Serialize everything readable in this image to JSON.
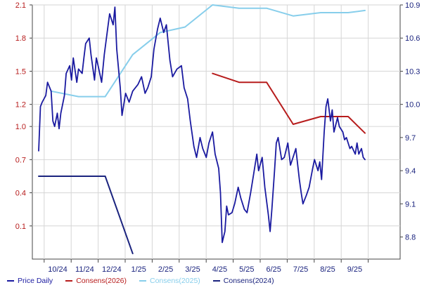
{
  "chart_data": {
    "type": "line",
    "x_tick_labels": [
      "10/24",
      "11/24",
      "12/24",
      "1/25",
      "2/25",
      "3/25",
      "4/25",
      "5/25",
      "6/25",
      "7/25",
      "8/25",
      "9/25"
    ],
    "left_axis": {
      "ticks": [
        "0.1",
        "0.4",
        "0.7",
        "1.0",
        "1.2",
        "1.5",
        "1.8",
        "2.1"
      ],
      "ylim": [
        -0.2,
        2.1
      ],
      "color": "#b71c1c"
    },
    "right_axis": {
      "ticks": [
        "8.8",
        "9.1",
        "9.4",
        "9.7",
        "10.0",
        "10.3",
        "10.6",
        "10.9"
      ],
      "ylim": [
        8.6,
        10.9
      ],
      "color": "#1a237e"
    },
    "series": [
      {
        "name": "Price Daily",
        "axis": "left",
        "color": "#1a1aa0",
        "points": [
          [
            "2024-09-16",
            0.78
          ],
          [
            "2024-09-18",
            1.18
          ],
          [
            "2024-09-20",
            1.22
          ],
          [
            "2024-09-24",
            1.28
          ],
          [
            "2024-09-26",
            1.4
          ],
          [
            "2024-09-30",
            1.32
          ],
          [
            "2024-10-02",
            1.05
          ],
          [
            "2024-10-04",
            1.0
          ],
          [
            "2024-10-07",
            1.12
          ],
          [
            "2024-10-09",
            0.98
          ],
          [
            "2024-10-11",
            1.12
          ],
          [
            "2024-10-15",
            1.28
          ],
          [
            "2024-10-17",
            1.48
          ],
          [
            "2024-10-21",
            1.55
          ],
          [
            "2024-10-23",
            1.42
          ],
          [
            "2024-10-25",
            1.62
          ],
          [
            "2024-10-29",
            1.4
          ],
          [
            "2024-10-31",
            1.52
          ],
          [
            "2024-11-04",
            1.48
          ],
          [
            "2024-11-06",
            1.62
          ],
          [
            "2024-11-08",
            1.75
          ],
          [
            "2024-11-12",
            1.8
          ],
          [
            "2024-11-14",
            1.65
          ],
          [
            "2024-11-18",
            1.42
          ],
          [
            "2024-11-20",
            1.62
          ],
          [
            "2024-11-22",
            1.55
          ],
          [
            "2024-11-26",
            1.4
          ],
          [
            "2024-11-29",
            1.65
          ],
          [
            "2024-12-03",
            1.9
          ],
          [
            "2024-12-05",
            2.02
          ],
          [
            "2024-12-09",
            1.92
          ],
          [
            "2024-12-11",
            2.08
          ],
          [
            "2024-12-13",
            1.7
          ],
          [
            "2024-12-17",
            1.35
          ],
          [
            "2024-12-19",
            1.1
          ],
          [
            "2024-12-23",
            1.3
          ],
          [
            "2024-12-27",
            1.22
          ],
          [
            "2024-12-31",
            1.32
          ],
          [
            "2025-01-06",
            1.38
          ],
          [
            "2025-01-10",
            1.45
          ],
          [
            "2025-01-14",
            1.3
          ],
          [
            "2025-01-17",
            1.35
          ],
          [
            "2025-01-21",
            1.45
          ],
          [
            "2025-01-24",
            1.7
          ],
          [
            "2025-01-28",
            1.88
          ],
          [
            "2025-01-31",
            1.98
          ],
          [
            "2025-02-04",
            1.85
          ],
          [
            "2025-02-07",
            1.92
          ],
          [
            "2025-02-11",
            1.6
          ],
          [
            "2025-02-14",
            1.45
          ],
          [
            "2025-02-19",
            1.52
          ],
          [
            "2025-02-24",
            1.55
          ],
          [
            "2025-02-27",
            1.35
          ],
          [
            "2025-03-03",
            1.25
          ],
          [
            "2025-03-06",
            1.05
          ],
          [
            "2025-03-10",
            0.82
          ],
          [
            "2025-03-13",
            0.72
          ],
          [
            "2025-03-17",
            0.9
          ],
          [
            "2025-03-20",
            0.8
          ],
          [
            "2025-03-24",
            0.72
          ],
          [
            "2025-03-27",
            0.85
          ],
          [
            "2025-03-31",
            0.95
          ],
          [
            "2025-04-03",
            0.75
          ],
          [
            "2025-04-07",
            0.62
          ],
          [
            "2025-04-09",
            0.4
          ],
          [
            "2025-04-11",
            -0.05
          ],
          [
            "2025-04-14",
            0.05
          ],
          [
            "2025-04-16",
            0.28
          ],
          [
            "2025-04-18",
            0.2
          ],
          [
            "2025-04-22",
            0.22
          ],
          [
            "2025-04-25",
            0.3
          ],
          [
            "2025-04-29",
            0.45
          ],
          [
            "2025-05-02",
            0.35
          ],
          [
            "2025-05-06",
            0.25
          ],
          [
            "2025-05-09",
            0.22
          ],
          [
            "2025-05-13",
            0.4
          ],
          [
            "2025-05-16",
            0.55
          ],
          [
            "2025-05-20",
            0.75
          ],
          [
            "2025-05-22",
            0.6
          ],
          [
            "2025-05-26",
            0.72
          ],
          [
            "2025-05-29",
            0.45
          ],
          [
            "2025-06-02",
            0.2
          ],
          [
            "2025-06-04",
            0.05
          ],
          [
            "2025-06-06",
            0.25
          ],
          [
            "2025-06-09",
            0.6
          ],
          [
            "2025-06-11",
            0.85
          ],
          [
            "2025-06-13",
            0.9
          ],
          [
            "2025-06-17",
            0.7
          ],
          [
            "2025-06-20",
            0.72
          ],
          [
            "2025-06-24",
            0.85
          ],
          [
            "2025-06-27",
            0.65
          ],
          [
            "2025-07-01",
            0.75
          ],
          [
            "2025-07-03",
            0.8
          ],
          [
            "2025-07-07",
            0.52
          ],
          [
            "2025-07-09",
            0.4
          ],
          [
            "2025-07-11",
            0.3
          ],
          [
            "2025-07-15",
            0.38
          ],
          [
            "2025-07-18",
            0.45
          ],
          [
            "2025-07-22",
            0.62
          ],
          [
            "2025-07-24",
            0.7
          ],
          [
            "2025-07-28",
            0.6
          ],
          [
            "2025-07-30",
            0.68
          ],
          [
            "2025-08-01",
            0.52
          ],
          [
            "2025-08-04",
            0.95
          ],
          [
            "2025-08-06",
            1.18
          ],
          [
            "2025-08-08",
            1.25
          ],
          [
            "2025-08-11",
            1.05
          ],
          [
            "2025-08-13",
            1.15
          ],
          [
            "2025-08-15",
            0.95
          ],
          [
            "2025-08-19",
            1.08
          ],
          [
            "2025-08-21",
            1.0
          ],
          [
            "2025-08-25",
            0.95
          ],
          [
            "2025-08-27",
            0.88
          ],
          [
            "2025-08-29",
            0.9
          ],
          [
            "2025-09-02",
            0.8
          ],
          [
            "2025-09-04",
            0.82
          ],
          [
            "2025-09-08",
            0.75
          ],
          [
            "2025-09-10",
            0.85
          ],
          [
            "2025-09-12",
            0.75
          ],
          [
            "2025-09-15",
            0.8
          ],
          [
            "2025-09-17",
            0.72
          ],
          [
            "2025-09-19",
            0.7
          ]
        ]
      },
      {
        "name": "Consens(2026)",
        "axis": "right",
        "color": "#b71c1c",
        "points": [
          [
            "2025-03-31",
            10.28
          ],
          [
            "2025-04-30",
            10.2
          ],
          [
            "2025-05-31",
            10.2
          ],
          [
            "2025-06-30",
            9.82
          ],
          [
            "2025-07-31",
            9.89
          ],
          [
            "2025-08-31",
            9.89
          ],
          [
            "2025-09-19",
            9.74
          ]
        ]
      },
      {
        "name": "Consens(2025)",
        "axis": "right",
        "color": "#87ceeb",
        "points": [
          [
            "2024-09-30",
            10.12
          ],
          [
            "2024-10-31",
            10.07
          ],
          [
            "2024-11-30",
            10.07
          ],
          [
            "2024-12-31",
            10.45
          ],
          [
            "2025-01-31",
            10.65
          ],
          [
            "2025-02-28",
            10.7
          ],
          [
            "2025-03-31",
            10.9
          ],
          [
            "2025-04-30",
            10.87
          ],
          [
            "2025-05-31",
            10.87
          ],
          [
            "2025-06-30",
            10.8
          ],
          [
            "2025-07-31",
            10.83
          ],
          [
            "2025-08-31",
            10.83
          ],
          [
            "2025-09-19",
            10.85
          ]
        ]
      },
      {
        "name": "Consens(2024)",
        "axis": "right",
        "color": "#1a237e",
        "points": [
          [
            "2024-09-16",
            9.35
          ],
          [
            "2024-09-30",
            9.35
          ],
          [
            "2024-10-31",
            9.35
          ],
          [
            "2024-11-30",
            9.35
          ],
          [
            "2024-12-31",
            8.65
          ]
        ]
      }
    ]
  }
}
